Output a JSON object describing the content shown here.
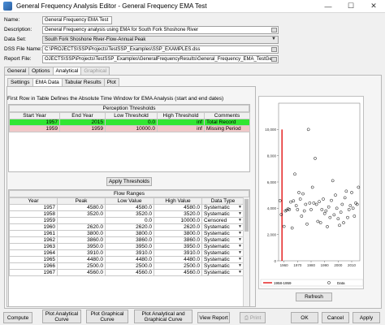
{
  "window": {
    "title": "General Frequency Analysis Editor - General Frequency EMA Test",
    "minimize": "—",
    "maximize": "☐",
    "close": "✕"
  },
  "form": {
    "name_label": "Name:",
    "name_value": "General Frequency EMA Test",
    "description_label": "Description:",
    "description_value": "General Frequency analysis using EMA for South Fork Shoshone River",
    "dataset_label": "Data Set:",
    "dataset_value": "South Fork Shoshone River-Flow-Annual Peak",
    "dss_label": "DSS File Name:",
    "dss_value": "C:\\PROJECTS\\SSP\\Projects\\TestSSP_Examples\\SSP_EXAMPLES.dss",
    "report_label": "Report File:",
    "report_value": "OJECTS\\SSP\\Projects\\TestSSP_Examples\\GeneralFrequencyResults\\General_Frequency_EMA_TestGe"
  },
  "main_tabs": [
    "General",
    "Options",
    "Analytical",
    "Graphical"
  ],
  "sub_tabs": [
    "Settings",
    "EMA Data",
    "Tabular Results",
    "Plot"
  ],
  "ema": {
    "first_row_text": "First Row in Table Defines the Absolute Time Window for EMA Analysis (start and end dates)",
    "perception_caption": "Perception Thresholds",
    "perception_headers": [
      "Start Year",
      "End Year",
      "Low Threshold",
      "High Threshold",
      "Comments"
    ],
    "perception_rows": [
      [
        "1957",
        "2015",
        "0.0",
        "inf",
        "Total Record"
      ],
      [
        "1959",
        "1959",
        "10000.0",
        "inf",
        "Missing Period"
      ]
    ],
    "apply_thresholds": "Apply Thresholds",
    "flow_caption": "Flow Ranges",
    "flow_headers": [
      "Year",
      "Peak",
      "Low Value",
      "High Value",
      "Data Type"
    ],
    "flow_rows": [
      [
        "1957",
        "4580.0",
        "4580.0",
        "4580.0",
        "Systematic"
      ],
      [
        "1958",
        "3520.0",
        "3520.0",
        "3520.0",
        "Systematic"
      ],
      [
        "1959",
        "",
        "0.0",
        "10000.0",
        "Censored"
      ],
      [
        "1960",
        "2620.0",
        "2620.0",
        "2620.0",
        "Systematic"
      ],
      [
        "1961",
        "3800.0",
        "3800.0",
        "3800.0",
        "Systematic"
      ],
      [
        "1962",
        "3860.0",
        "3860.0",
        "3860.0",
        "Systematic"
      ],
      [
        "1963",
        "3950.0",
        "3950.0",
        "3950.0",
        "Systematic"
      ],
      [
        "1964",
        "3910.0",
        "3910.0",
        "3910.0",
        "Systematic"
      ],
      [
        "1965",
        "4480.0",
        "4480.0",
        "4480.0",
        "Systematic"
      ],
      [
        "1966",
        "2500.0",
        "2500.0",
        "2500.0",
        "Systematic"
      ],
      [
        "1967",
        "4560.0",
        "4560.0",
        "4560.0",
        "Systematic"
      ]
    ]
  },
  "chart_data": {
    "type": "scatter",
    "x_tick_labels": [
      "1960",
      "1970",
      "1980",
      "1990",
      "2000",
      "2010"
    ],
    "y_tick_labels": [
      "0",
      "2,000",
      "4,000",
      "6,000",
      "8,000",
      "10,000"
    ],
    "xlim": [
      1956,
      2016
    ],
    "ylim": [
      0,
      12000
    ],
    "series": [
      {
        "name": "Data",
        "marker": "open-circle",
        "color": "#000000",
        "x": [
          1957,
          1958,
          1960,
          1961,
          1962,
          1963,
          1964,
          1965,
          1966,
          1967,
          1968,
          1969,
          1970,
          1971,
          1972,
          1973,
          1974,
          1975,
          1976,
          1977,
          1978,
          1979,
          1980,
          1981,
          1982,
          1983,
          1984,
          1985,
          1986,
          1987,
          1988,
          1989,
          1990,
          1991,
          1992,
          1993,
          1994,
          1995,
          1996,
          1997,
          1998,
          1999,
          2000,
          2001,
          2002,
          2003,
          2004,
          2005,
          2006,
          2007,
          2008,
          2009,
          2010,
          2011,
          2012,
          2013,
          2014,
          2015
        ],
        "y": [
          4580,
          3520,
          2620,
          3800,
          3860,
          3950,
          3910,
          4480,
          2500,
          4560,
          6600,
          4200,
          3900,
          5200,
          4700,
          3400,
          5100,
          3800,
          4300,
          2800,
          10000,
          4400,
          3900,
          5600,
          4400,
          7800,
          4300,
          3000,
          4500,
          2900,
          3900,
          4700,
          3600,
          3800,
          2600,
          4100,
          3300,
          4600,
          6100,
          3500,
          5000,
          4000,
          3200,
          2700,
          3700,
          4300,
          2900,
          4800,
          5300,
          3300,
          3900,
          4200,
          5200,
          4000,
          3400,
          4400,
          4300,
          5600
        ]
      },
      {
        "name": "1958-1959",
        "marker": "red-band",
        "color": "#e00000",
        "x_range": [
          1958,
          1959
        ],
        "y_range": [
          0,
          10000
        ]
      }
    ]
  },
  "refresh": "Refresh",
  "bottom_buttons": {
    "compute": "Compute",
    "plot_analytical": "Plot Analytical Curve",
    "plot_graphical": "Plot Graphical Curve",
    "plot_both": "Plot Analytical and Graphical Curve",
    "view_report": "View Report",
    "print": "Print",
    "ok": "OK",
    "cancel": "Cancel",
    "apply": "Apply"
  }
}
